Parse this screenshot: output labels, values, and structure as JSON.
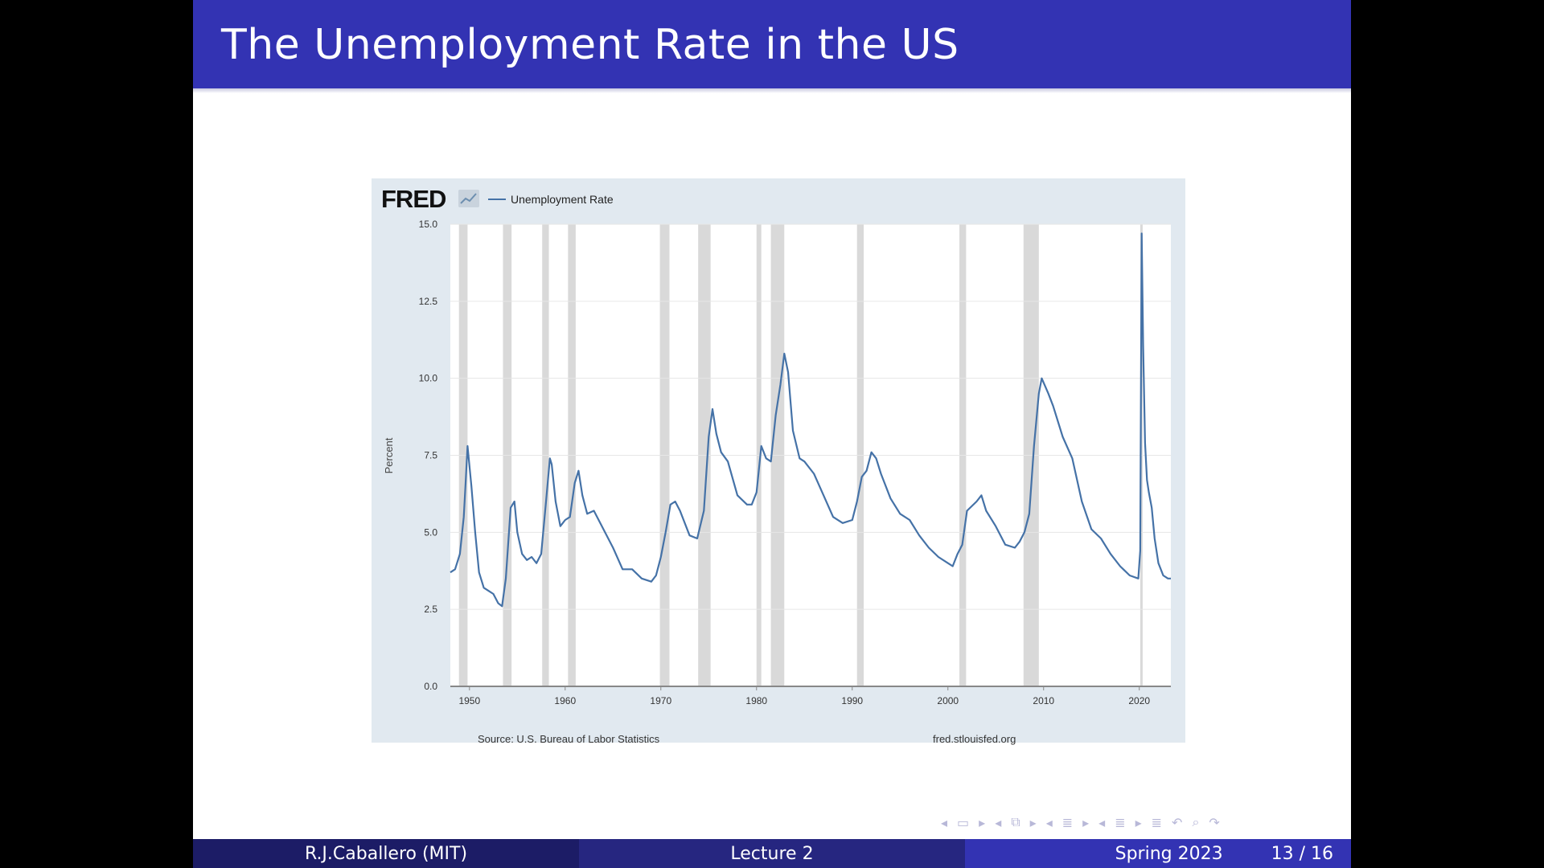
{
  "slide": {
    "title": "The Unemployment Rate in the US"
  },
  "fred": {
    "logo": "FRED",
    "source_left": "Source: U.S. Bureau of Labor Statistics",
    "source_right": "fred.stlouisfed.org"
  },
  "footer": {
    "author": "R.J.Caballero (MIT)",
    "lecture": "Lecture 2",
    "term": "Spring 2023",
    "page": "13 / 16"
  },
  "colors": {
    "title_bar": "#3333b3",
    "series": "#4572a7",
    "recession": "#d9d9d9",
    "panel": "#e1e9f0"
  },
  "chart_data": {
    "type": "line",
    "title": "",
    "xlabel": "",
    "ylabel": "Percent",
    "legend": [
      "Unemployment Rate"
    ],
    "legend_position": "top-left",
    "xlim": [
      1948.0,
      2023.3
    ],
    "ylim": [
      0,
      15
    ],
    "x_ticks": [
      1950,
      1960,
      1970,
      1980,
      1990,
      2000,
      2010,
      2020
    ],
    "y_ticks": [
      "0.0",
      "2.5",
      "5.0",
      "7.5",
      "10.0",
      "12.5",
      "15.0"
    ],
    "grid": true,
    "recessions": [
      [
        1948.9,
        1949.8
      ],
      [
        1953.5,
        1954.4
      ],
      [
        1957.6,
        1958.3
      ],
      [
        1960.3,
        1961.1
      ],
      [
        1969.9,
        1970.9
      ],
      [
        1973.9,
        1975.2
      ],
      [
        1980.0,
        1980.5
      ],
      [
        1981.5,
        1982.9
      ],
      [
        1990.5,
        1991.2
      ],
      [
        2001.2,
        2001.9
      ],
      [
        2007.9,
        2009.5
      ],
      [
        2020.1,
        2020.3
      ]
    ],
    "series": [
      {
        "name": "Unemployment Rate",
        "x": [
          1948.0,
          1948.5,
          1949.0,
          1949.4,
          1949.6,
          1949.8,
          1950.2,
          1950.6,
          1951.0,
          1951.5,
          1952.0,
          1952.5,
          1953.0,
          1953.4,
          1953.8,
          1954.3,
          1954.7,
          1955.0,
          1955.5,
          1956.0,
          1956.5,
          1957.0,
          1957.5,
          1958.0,
          1958.4,
          1958.6,
          1959.0,
          1959.5,
          1960.0,
          1960.5,
          1961.0,
          1961.4,
          1961.8,
          1962.3,
          1963.0,
          1964.0,
          1965.0,
          1966.0,
          1967.0,
          1968.0,
          1969.0,
          1969.5,
          1970.0,
          1970.5,
          1971.0,
          1971.5,
          1972.0,
          1973.0,
          1973.8,
          1974.5,
          1975.0,
          1975.4,
          1975.8,
          1976.3,
          1977.0,
          1978.0,
          1979.0,
          1979.5,
          1980.0,
          1980.5,
          1981.0,
          1981.5,
          1982.0,
          1982.5,
          1982.9,
          1983.3,
          1983.8,
          1984.5,
          1985.0,
          1986.0,
          1987.0,
          1988.0,
          1989.0,
          1990.0,
          1990.5,
          1991.0,
          1991.5,
          1992.0,
          1992.5,
          1993.0,
          1994.0,
          1995.0,
          1996.0,
          1997.0,
          1998.0,
          1999.0,
          2000.0,
          2000.5,
          2001.0,
          2001.5,
          2002.0,
          2003.0,
          2003.5,
          2004.0,
          2005.0,
          2006.0,
          2007.0,
          2007.5,
          2008.0,
          2008.5,
          2009.0,
          2009.5,
          2009.8,
          2010.5,
          2011.0,
          2012.0,
          2013.0,
          2014.0,
          2015.0,
          2016.0,
          2017.0,
          2018.0,
          2019.0,
          2019.9,
          2020.1,
          2020.25,
          2020.4,
          2020.6,
          2020.8,
          2021.0,
          2021.3,
          2021.6,
          2022.0,
          2022.5,
          2023.0,
          2023.3
        ],
        "y": [
          3.7,
          3.8,
          4.3,
          5.5,
          6.6,
          7.8,
          6.5,
          5.0,
          3.7,
          3.2,
          3.1,
          3.0,
          2.7,
          2.6,
          3.5,
          5.8,
          6.0,
          5.0,
          4.3,
          4.1,
          4.2,
          4.0,
          4.3,
          6.0,
          7.4,
          7.2,
          6.0,
          5.2,
          5.4,
          5.5,
          6.6,
          7.0,
          6.2,
          5.6,
          5.7,
          5.1,
          4.5,
          3.8,
          3.8,
          3.5,
          3.4,
          3.6,
          4.2,
          5.0,
          5.9,
          6.0,
          5.7,
          4.9,
          4.8,
          5.7,
          8.1,
          9.0,
          8.2,
          7.6,
          7.3,
          6.2,
          5.9,
          5.9,
          6.3,
          7.8,
          7.4,
          7.3,
          8.8,
          9.8,
          10.8,
          10.2,
          8.3,
          7.4,
          7.3,
          6.9,
          6.2,
          5.5,
          5.3,
          5.4,
          6.0,
          6.8,
          7.0,
          7.6,
          7.4,
          6.9,
          6.1,
          5.6,
          5.4,
          4.9,
          4.5,
          4.2,
          4.0,
          3.9,
          4.3,
          4.6,
          5.7,
          6.0,
          6.2,
          5.7,
          5.2,
          4.6,
          4.5,
          4.7,
          5.0,
          5.6,
          7.8,
          9.5,
          10.0,
          9.5,
          9.1,
          8.1,
          7.4,
          6.0,
          5.1,
          4.8,
          4.3,
          3.9,
          3.6,
          3.5,
          4.4,
          14.7,
          11.1,
          7.9,
          6.7,
          6.3,
          5.8,
          4.8,
          4.0,
          3.6,
          3.5,
          3.5
        ]
      }
    ]
  }
}
